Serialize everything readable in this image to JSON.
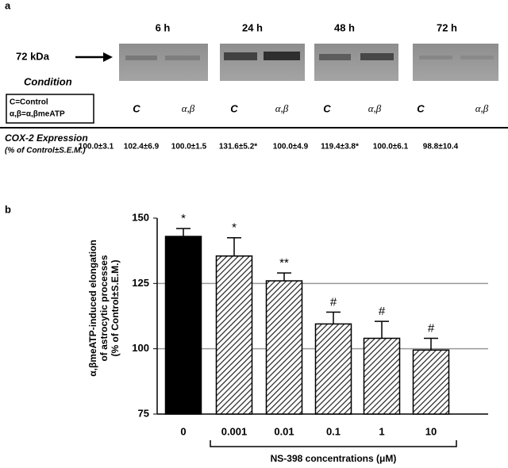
{
  "panel_a": {
    "label": "a",
    "times": [
      "6 h",
      "24 h",
      "48 h",
      "72 h"
    ],
    "marker": "72 kDa",
    "condition_heading": "Condition",
    "legend": [
      "C=Control",
      "α,β=α,βmeATP"
    ],
    "conditions": [
      "C",
      "α,β",
      "C",
      "α,β",
      "C",
      "α,β",
      "C",
      "α,β"
    ],
    "expression_heading": [
      "COX-2 Expression",
      "(% of Control±S.E.M.)"
    ],
    "expression": [
      "100.0±3.1",
      "102.4±6.9",
      "100.0±1.5",
      "131.6±5.2*",
      "100.0±4.9",
      "119.4±3.8*",
      "100.0±6.1",
      "98.8±10.4"
    ]
  },
  "panel_b": {
    "label": "b"
  },
  "chart_data": {
    "type": "bar",
    "categories": [
      "0",
      "0.001",
      "0.01",
      "0.1",
      "1",
      "10"
    ],
    "values": [
      143,
      135.5,
      126,
      109.5,
      104,
      99.5
    ],
    "errors": [
      3,
      7,
      3,
      4.5,
      6.5,
      4.5
    ],
    "annotations": [
      "*",
      "*",
      "**",
      "#",
      "#",
      "#"
    ],
    "fills": [
      "solid",
      "hatched",
      "hatched",
      "hatched",
      "hatched",
      "hatched"
    ],
    "color": "#000000",
    "ylim": [
      75,
      150
    ],
    "yticks": [
      75,
      100,
      125,
      150
    ],
    "grid": true,
    "y_label": [
      "α,βmeATP-induced elongation",
      "of astrocytic processes",
      "(% of Control±S.E.M.)"
    ],
    "x_label": "NS-398 concentrations (μM)"
  }
}
